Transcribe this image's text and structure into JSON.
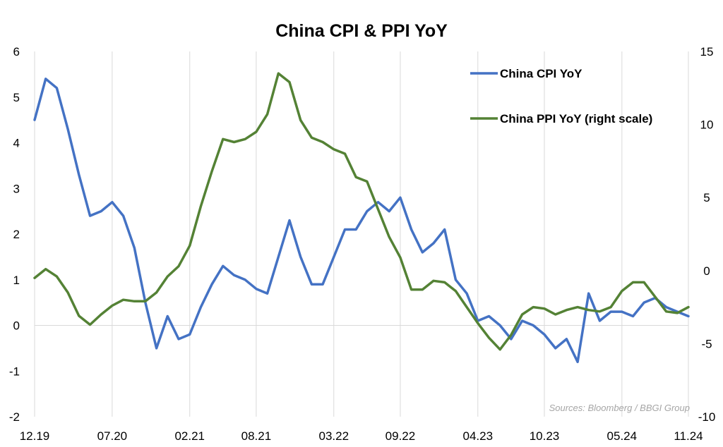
{
  "chart_data": {
    "type": "line",
    "title": "China CPI & PPI YoY",
    "source": "Sources: Bloomberg / BBGI Group",
    "x": [
      "12.19",
      "01.20",
      "02.20",
      "03.20",
      "04.20",
      "05.20",
      "06.20",
      "07.20",
      "08.20",
      "09.20",
      "10.20",
      "11.20",
      "12.20",
      "01.21",
      "02.21",
      "03.21",
      "04.21",
      "05.21",
      "06.21",
      "07.21",
      "08.21",
      "09.21",
      "10.21",
      "11.21",
      "12.21",
      "01.22",
      "02.22",
      "03.22",
      "04.22",
      "05.22",
      "06.22",
      "07.22",
      "08.22",
      "09.22",
      "10.22",
      "11.22",
      "12.22",
      "01.23",
      "02.23",
      "03.23",
      "04.23",
      "05.23",
      "06.23",
      "07.23",
      "08.23",
      "09.23",
      "10.23",
      "11.23",
      "12.23",
      "01.24",
      "02.24",
      "03.24",
      "04.24",
      "05.24",
      "06.24",
      "07.24",
      "08.24",
      "09.24",
      "10.24",
      "11.24"
    ],
    "x_tick_labels": [
      "12.19",
      "07.20",
      "02.21",
      "08.21",
      "03.22",
      "09.22",
      "04.23",
      "10.23",
      "05.24",
      "11.24"
    ],
    "series": [
      {
        "name": "China CPI YoY",
        "axis": "left",
        "color": "#4472c4",
        "values": [
          4.5,
          5.4,
          5.2,
          4.3,
          3.3,
          2.4,
          2.5,
          2.7,
          2.4,
          1.7,
          0.5,
          -0.5,
          0.2,
          -0.3,
          -0.2,
          0.4,
          0.9,
          1.3,
          1.1,
          1.0,
          0.8,
          0.7,
          1.5,
          2.3,
          1.5,
          0.9,
          0.9,
          1.5,
          2.1,
          2.1,
          2.5,
          2.7,
          2.5,
          2.8,
          2.1,
          1.6,
          1.8,
          2.1,
          1.0,
          0.7,
          0.1,
          0.2,
          0.0,
          -0.3,
          0.1,
          0.0,
          -0.2,
          -0.5,
          -0.3,
          -0.8,
          0.7,
          0.1,
          0.3,
          0.3,
          0.2,
          0.5,
          0.6,
          0.4,
          0.3,
          0.2
        ]
      },
      {
        "name": "China PPI YoY (right scale)",
        "axis": "right",
        "color": "#548235",
        "values": [
          -0.5,
          0.1,
          -0.4,
          -1.5,
          -3.1,
          -3.7,
          -3.0,
          -2.4,
          -2.0,
          -2.1,
          -2.1,
          -1.5,
          -0.4,
          0.3,
          1.7,
          4.4,
          6.8,
          9.0,
          8.8,
          9.0,
          9.5,
          10.7,
          13.5,
          12.9,
          10.3,
          9.1,
          8.8,
          8.3,
          8.0,
          6.4,
          6.1,
          4.2,
          2.3,
          0.9,
          -1.3,
          -1.3,
          -0.7,
          -0.8,
          -1.4,
          -2.5,
          -3.6,
          -4.6,
          -5.4,
          -4.4,
          -3.0,
          -2.5,
          -2.6,
          -3.0,
          -2.7,
          -2.5,
          -2.7,
          -2.8,
          -2.5,
          -1.4,
          -0.8,
          -0.8,
          -1.8,
          -2.8,
          -2.9,
          -2.5
        ]
      }
    ],
    "y_left": {
      "min": -2,
      "max": 6,
      "ticks": [
        -2,
        -1,
        0,
        1,
        2,
        3,
        4,
        5,
        6
      ]
    },
    "y_right": {
      "min": -10,
      "max": 15,
      "ticks": [
        -10,
        -5,
        0,
        5,
        10,
        15
      ]
    },
    "grid": "vertical",
    "legend_position": "top-right"
  }
}
